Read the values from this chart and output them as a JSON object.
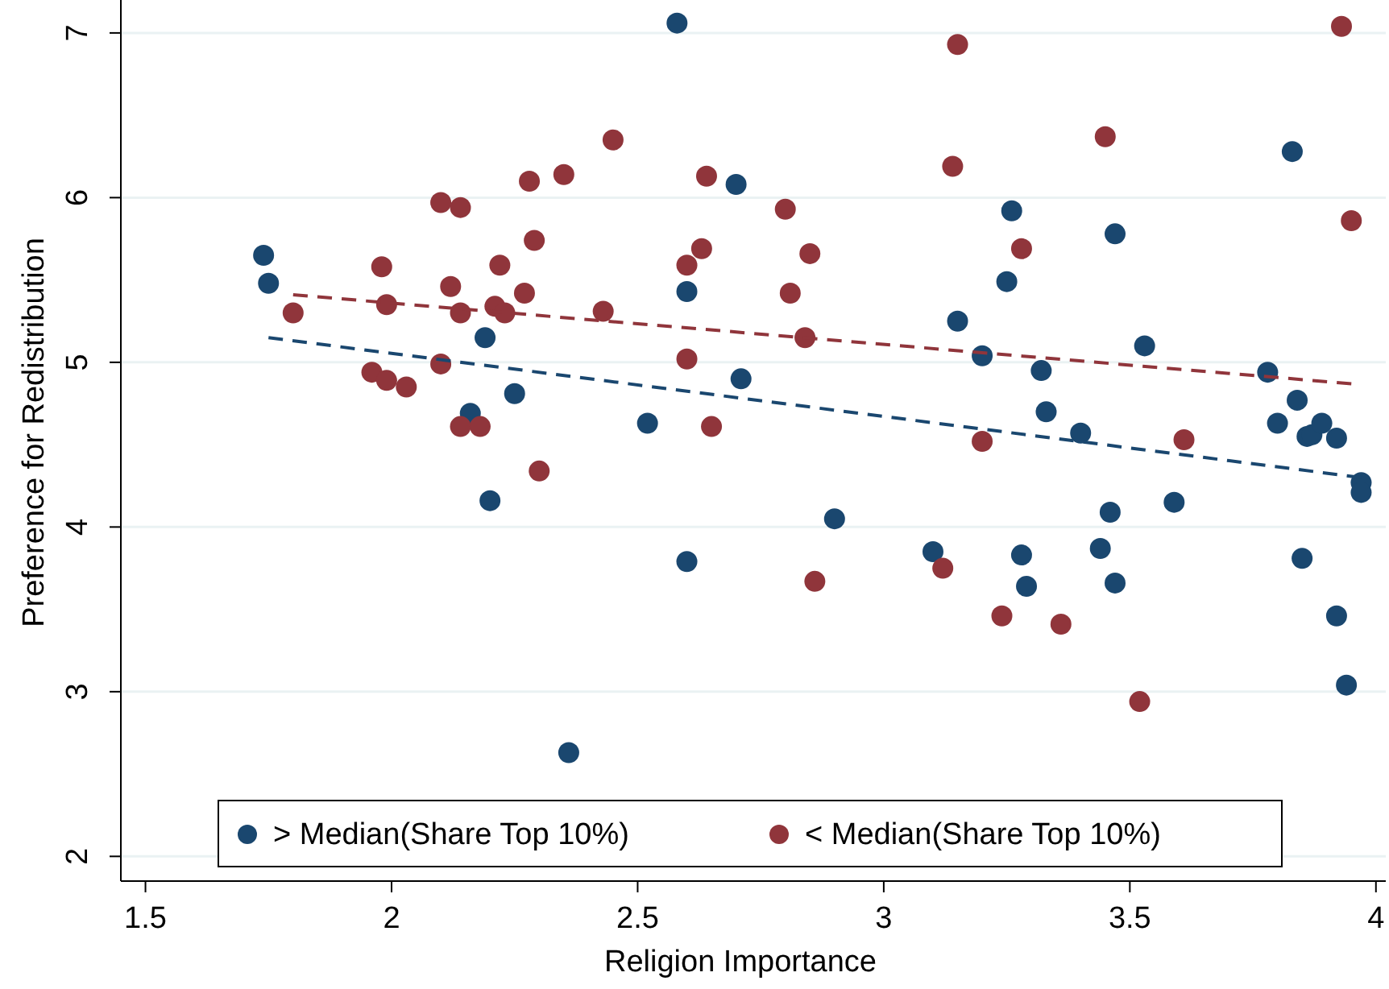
{
  "chart_data": {
    "type": "scatter",
    "xlabel": "Religion Importance",
    "ylabel": "Preference for Redistribution",
    "xlim": [
      1.45,
      4.02
    ],
    "ylim": [
      1.85,
      7.2
    ],
    "xticks": [
      1.5,
      2,
      2.5,
      3,
      3.5,
      4
    ],
    "yticks": [
      2,
      3,
      4,
      5,
      6,
      7
    ],
    "grid": "y",
    "legend": "bottom",
    "marker": "circle",
    "series": [
      {
        "name": "> Median(Share Top 10%)",
        "color": "#1a476f",
        "x": [
          1.74,
          1.75,
          2.19,
          2.16,
          2.25,
          2.2,
          2.58,
          2.6,
          2.7,
          2.71,
          2.52,
          2.36,
          2.6,
          2.9,
          3.1,
          3.28,
          3.29,
          3.44,
          3.46,
          3.47,
          3.59,
          3.85,
          3.92,
          3.94,
          3.97,
          3.97,
          3.26,
          3.25,
          3.15,
          3.2,
          3.32,
          3.33,
          3.4,
          3.47,
          3.53,
          3.83,
          3.78,
          3.84,
          3.8,
          3.86,
          3.87,
          3.89,
          3.92
        ],
        "values": [
          5.65,
          5.48,
          5.15,
          4.69,
          4.81,
          4.16,
          7.06,
          5.43,
          6.08,
          4.9,
          4.63,
          2.63,
          3.79,
          4.05,
          3.85,
          3.83,
          3.64,
          3.87,
          4.09,
          3.66,
          4.15,
          3.81,
          3.46,
          3.04,
          4.27,
          4.21,
          5.92,
          5.49,
          5.25,
          5.04,
          4.95,
          4.7,
          4.57,
          5.78,
          5.1,
          6.28,
          4.94,
          4.77,
          4.63,
          4.55,
          4.56,
          4.63,
          4.54
        ]
      },
      {
        "name": "< Median(Share Top 10%)",
        "color": "#90353b",
        "x": [
          1.8,
          1.98,
          1.99,
          1.96,
          1.99,
          2.03,
          2.1,
          2.14,
          2.12,
          2.14,
          2.1,
          2.14,
          2.18,
          2.22,
          2.21,
          2.23,
          2.27,
          2.28,
          2.29,
          2.3,
          2.35,
          2.45,
          2.43,
          2.64,
          2.63,
          2.6,
          2.6,
          2.65,
          3.15,
          3.14,
          2.8,
          2.85,
          2.81,
          2.84,
          3.45,
          3.28,
          3.2,
          3.61,
          3.93,
          3.95,
          2.86,
          3.12,
          3.24,
          3.36,
          3.52
        ],
        "values": [
          5.3,
          5.58,
          5.35,
          4.94,
          4.89,
          4.85,
          5.97,
          5.94,
          5.46,
          5.3,
          4.99,
          4.61,
          4.61,
          5.59,
          5.34,
          5.3,
          5.42,
          6.1,
          5.74,
          4.34,
          6.14,
          6.35,
          5.31,
          6.13,
          5.69,
          5.59,
          5.02,
          4.61,
          6.93,
          6.19,
          5.93,
          5.66,
          5.42,
          5.15,
          6.37,
          5.69,
          4.52,
          4.53,
          7.04,
          5.86,
          3.67,
          3.75,
          3.46,
          3.41,
          2.94
        ]
      },
      {
        "type": "line",
        "line_style": "dashed",
        "marker": "none",
        "color": "#1a476f",
        "x": [
          1.75,
          3.97
        ],
        "values": [
          5.15,
          4.3
        ]
      },
      {
        "type": "line",
        "line_style": "dashed",
        "marker": "none",
        "color": "#90353b",
        "x": [
          1.8,
          3.95
        ],
        "values": [
          5.41,
          4.87
        ]
      }
    ]
  }
}
